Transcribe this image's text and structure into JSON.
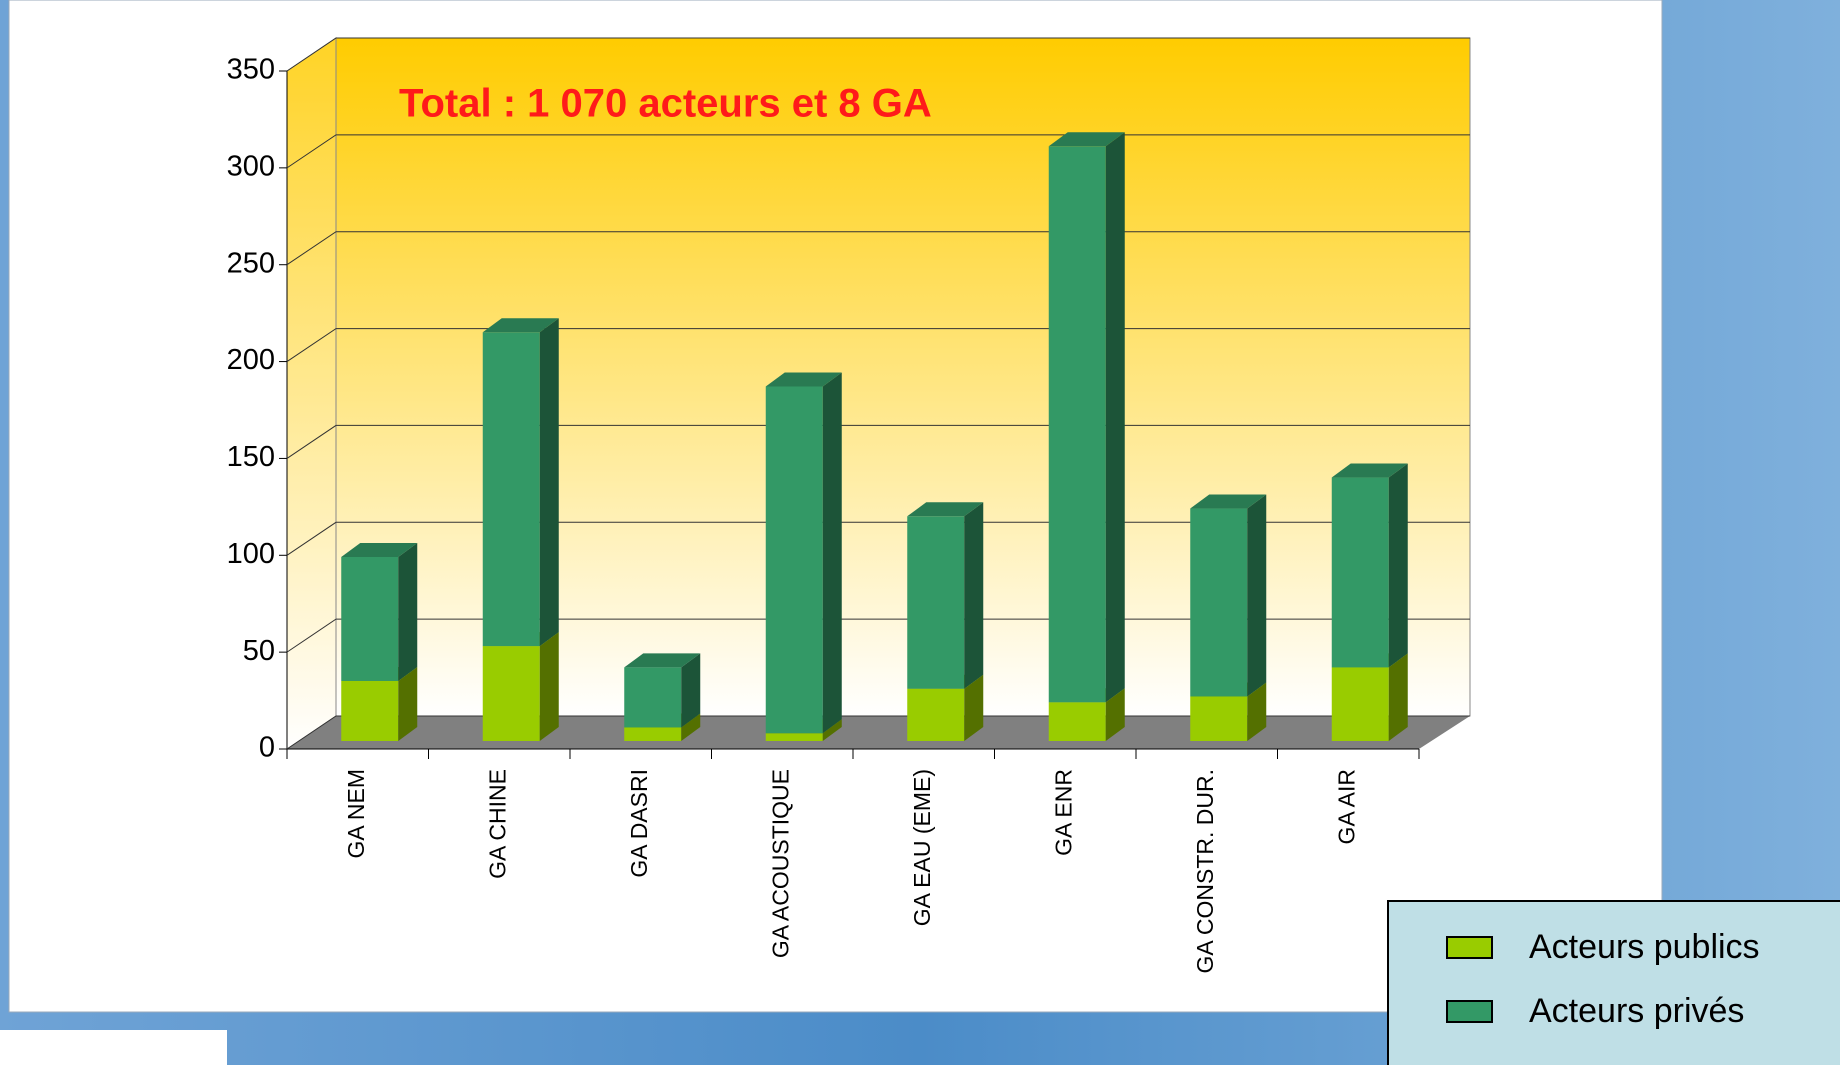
{
  "chart_data": {
    "type": "bar3d_stacked",
    "annotation": "Total : 1 070 acteurs et 8 GA",
    "categories": [
      "GA NEM",
      "GA CHINE",
      "GA DASRI",
      "GA ACOUSTIQUE",
      "GA EAU (EME)",
      "GA ENR",
      "GA CONSTR. DUR.",
      "GA AIR"
    ],
    "series": [
      {
        "name": "Acteurs publics",
        "color": "#99cc00",
        "values": [
          31,
          49,
          7,
          4,
          27,
          20,
          23,
          38
        ]
      },
      {
        "name": "Acteurs privés",
        "color": "#339966",
        "values": [
          64,
          162,
          31,
          179,
          89,
          287,
          97,
          98
        ]
      }
    ],
    "ylim": [
      0,
      350
    ],
    "yticks": [
      0,
      50,
      100,
      150,
      200,
      250,
      300,
      350
    ],
    "grid": true
  }
}
